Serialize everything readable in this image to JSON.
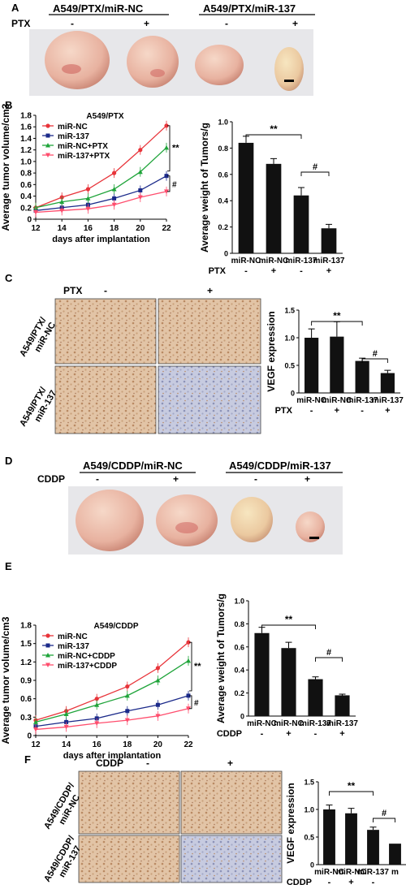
{
  "colors": {
    "nc": "#e8343a",
    "mir": "#1b2a8a",
    "nc_drug": "#1fa43a",
    "mir_drug": "#ff4d6d",
    "bar": "#111111",
    "photo_bg": "#e9eaee",
    "tumor": "#ecb8a7",
    "stain_brown": "#d9b592",
    "stain_blue": "#b9bfd6"
  },
  "panelA": {
    "letter": "A",
    "group1": "A549/PTX/miR-NC",
    "group2": "A549/PTX/miR-137",
    "drug": "PTX",
    "signs": [
      "-",
      "+",
      "-",
      "+"
    ]
  },
  "panelB": {
    "letter": "B"
  },
  "panelC": {
    "letter": "C",
    "drug": "PTX",
    "col_minus": "-",
    "col_plus": "+",
    "row1": "A549/PTX/ miR-NC",
    "row2": "A549/PTX/ miR-137"
  },
  "panelD": {
    "letter": "D",
    "group1": "A549/CDDP/miR-NC",
    "group2": "A549/CDDP/miR-137",
    "drug": "CDDP",
    "signs": [
      "-",
      "+",
      "-",
      "+"
    ]
  },
  "panelE": {
    "letter": "E"
  },
  "panelF": {
    "letter": "F",
    "drug": "CDDP",
    "col_minus": "-",
    "col_plus": "+",
    "row1": "A549/CDDP/ miR-NC",
    "row2": "A549/CDDP/ miR-137"
  },
  "chart_data": [
    {
      "id": "B-line",
      "type": "line",
      "title": "A549/PTX",
      "xlabel": "days after implantation",
      "ylabel": "Average tumor volume/cm3",
      "x": [
        12,
        14,
        16,
        18,
        20,
        22
      ],
      "xlim": [
        12,
        22
      ],
      "ylim": [
        0,
        1.8
      ],
      "yticks": [
        "0",
        "0.2",
        "0.4",
        "0.6",
        "0.8",
        "1.0",
        "1.2",
        "1.4",
        "1.6",
        "1.8"
      ],
      "series": [
        {
          "name": "miR-NC",
          "values": [
            0.2,
            0.38,
            0.52,
            0.8,
            1.2,
            1.62
          ]
        },
        {
          "name": "miR-137",
          "values": [
            0.15,
            0.2,
            0.25,
            0.36,
            0.5,
            0.75
          ]
        },
        {
          "name": "miR-NC+PTX",
          "values": [
            0.2,
            0.3,
            0.36,
            0.52,
            0.82,
            1.24
          ]
        },
        {
          "name": "miR-137+PTX",
          "values": [
            0.12,
            0.15,
            0.18,
            0.25,
            0.38,
            0.48
          ]
        }
      ],
      "annotations": [
        "**",
        "#"
      ]
    },
    {
      "id": "B-bar",
      "type": "bar",
      "ylabel": "Average weight of Tumors/g",
      "categories": [
        "miR-NC",
        "miR-NC",
        "miR-137",
        "miR-137"
      ],
      "treatment_label": "PTX",
      "signs": [
        "-",
        "+",
        "-",
        "+"
      ],
      "values": [
        0.84,
        0.68,
        0.44,
        0.19
      ],
      "errors": [
        0.05,
        0.04,
        0.06,
        0.03
      ],
      "ylim": [
        0,
        1.0
      ],
      "yticks": [
        "0",
        "0.2",
        "0.4",
        "0.6",
        "0.8",
        "1.0"
      ],
      "annotations": [
        "**",
        "#"
      ]
    },
    {
      "id": "C-bar",
      "type": "bar",
      "ylabel": "VEGF expression",
      "categories": [
        "miR-NC",
        "miR-NC",
        "miR-137",
        "miR-137"
      ],
      "treatment_label": "PTX",
      "signs": [
        "-",
        "+",
        "-",
        "+"
      ],
      "values": [
        1.0,
        1.02,
        0.58,
        0.36
      ],
      "errors": [
        0.16,
        0.27,
        0.05,
        0.05
      ],
      "ylim": [
        0,
        1.5
      ],
      "yticks": [
        "0",
        "0.5",
        "1.0",
        "1.5"
      ],
      "annotations": [
        "**",
        "#"
      ]
    },
    {
      "id": "E-line",
      "type": "line",
      "title": "A549/CDDP",
      "xlabel": "days after implantation",
      "ylabel": "Average tumor volume/cm3",
      "x": [
        12,
        14,
        16,
        18,
        20,
        22
      ],
      "xlim": [
        12,
        22
      ],
      "ylim": [
        0,
        1.8
      ],
      "yticks": [
        "0",
        "0.3",
        "0.6",
        "0.9",
        "1.2",
        "1.5",
        "1.8"
      ],
      "series": [
        {
          "name": "miR-NC",
          "values": [
            0.25,
            0.4,
            0.6,
            0.8,
            1.1,
            1.52
          ]
        },
        {
          "name": "miR-137",
          "values": [
            0.15,
            0.22,
            0.28,
            0.4,
            0.5,
            0.65
          ]
        },
        {
          "name": "miR-NC+CDDP",
          "values": [
            0.22,
            0.35,
            0.5,
            0.65,
            0.9,
            1.22
          ]
        },
        {
          "name": "miR-137+CDDP",
          "values": [
            0.1,
            0.14,
            0.2,
            0.25,
            0.32,
            0.44
          ]
        }
      ],
      "annotations": [
        "**",
        "#"
      ]
    },
    {
      "id": "E-bar",
      "type": "bar",
      "ylabel": "Average weight of Tumors/g",
      "categories": [
        "miR-NC",
        "miR-NC",
        "miR-137",
        "miR-137"
      ],
      "treatment_label": "CDDP",
      "signs": [
        "-",
        "+",
        "-",
        "+"
      ],
      "values": [
        0.72,
        0.59,
        0.32,
        0.18
      ],
      "errors": [
        0.05,
        0.05,
        0.02,
        0.01
      ],
      "ylim": [
        0,
        1.0
      ],
      "yticks": [
        "0",
        "0.2",
        "0.4",
        "0.6",
        "0.8",
        "1.0"
      ],
      "annotations": [
        "**",
        "#"
      ]
    },
    {
      "id": "F-bar",
      "type": "bar",
      "ylabel": "VEGF expression",
      "categories": [
        "miR-NC",
        "miR-NC",
        "miR-137",
        "m"
      ],
      "treatment_label": "CDDP",
      "signs": [
        "-",
        "+",
        "-",
        ""
      ],
      "values": [
        1.0,
        0.93,
        0.63,
        0.38
      ],
      "errors": [
        0.08,
        0.09,
        0.05,
        0.0
      ],
      "ylim": [
        0,
        1.5
      ],
      "yticks": [
        "0",
        "0.5",
        "1.0",
        "1.5"
      ],
      "annotations": [
        "**",
        "#"
      ]
    }
  ]
}
